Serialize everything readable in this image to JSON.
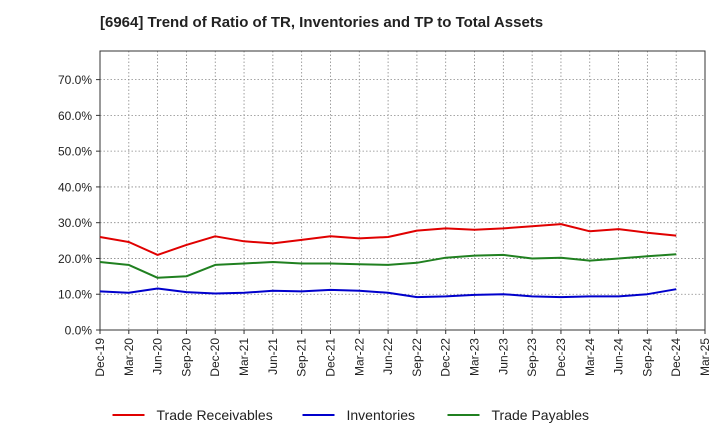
{
  "chart_data": {
    "type": "line",
    "title": "[6964]  Trend of Ratio of TR, Inventories and TP to Total Assets",
    "xlabel": "",
    "ylabel": "",
    "categories": [
      "Dec-19",
      "Mar-20",
      "Jun-20",
      "Sep-20",
      "Dec-20",
      "Mar-21",
      "Jun-21",
      "Sep-21",
      "Dec-21",
      "Mar-22",
      "Jun-22",
      "Sep-22",
      "Dec-22",
      "Mar-23",
      "Jun-23",
      "Sep-23",
      "Dec-23",
      "Mar-24",
      "Jun-24",
      "Sep-24",
      "Dec-24",
      "Mar-25"
    ],
    "ylim": [
      0,
      78
    ],
    "yticks": [
      0,
      10,
      20,
      30,
      40,
      50,
      60,
      70
    ],
    "ytick_labels": [
      "0.0%",
      "10.0%",
      "20.0%",
      "30.0%",
      "40.0%",
      "50.0%",
      "60.0%",
      "70.0%"
    ],
    "grid": true,
    "legend_position": "bottom",
    "series": [
      {
        "name": "Trade Receivables",
        "color": "#e00000",
        "values": [
          26.0,
          24.6,
          21.0,
          23.8,
          26.2,
          24.8,
          24.2,
          25.2,
          26.2,
          25.6,
          26.0,
          27.8,
          28.4,
          28.0,
          28.4,
          29.0,
          29.6,
          27.6,
          28.2,
          27.2,
          26.4,
          null
        ]
      },
      {
        "name": "Inventories",
        "color": "#0000cc",
        "values": [
          10.8,
          10.4,
          11.6,
          10.6,
          10.2,
          10.4,
          11.0,
          10.8,
          11.2,
          11.0,
          10.4,
          9.2,
          9.4,
          9.8,
          10.0,
          9.4,
          9.2,
          9.4,
          9.4,
          10.0,
          11.4,
          null
        ]
      },
      {
        "name": "Trade Payables",
        "color": "#208020",
        "values": [
          19.0,
          18.2,
          14.6,
          15.0,
          18.2,
          18.6,
          19.0,
          18.6,
          18.6,
          18.4,
          18.2,
          18.8,
          20.2,
          20.8,
          21.0,
          20.0,
          20.2,
          19.4,
          20.0,
          20.6,
          21.2,
          null
        ]
      }
    ]
  }
}
